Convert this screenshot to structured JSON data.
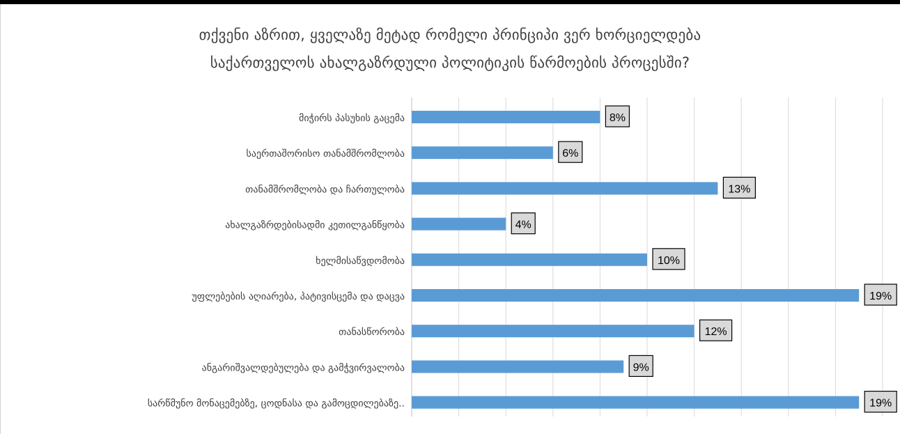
{
  "chart_data": {
    "type": "bar",
    "orientation": "horizontal",
    "title_lines": [
      "თქვენი აზრით,  ყველაზე მეტად რომელი პრინციპი  ვერ ხორციელდება",
      "საქართველოს ახალგაზრდული  პოლიტიკის  წარმოების პროცესში?"
    ],
    "categories": [
      "მიჭირს პასუხის გაცემა",
      "საერთაშორისო თანამშრომლობა",
      "თანამშრომლობა და ჩართულობა",
      "ახალგაზრდებისადმი კეთილგანწყობა",
      "ხელმისაწვდომობა",
      "უფლებების აღიარება, პატივისცემა და დაცვა",
      "თანასწორობა",
      "ანგარიშვალდებულება და გამჭვირვალობა",
      "სარწმუნო მონაცემებზე, ცოდნასა და გამოცდილებაზე.."
    ],
    "values": [
      8,
      6,
      13,
      4,
      10,
      19,
      12,
      9,
      19
    ],
    "data_labels": [
      "8%",
      "6%",
      "13%",
      "4%",
      "10%",
      "19%",
      "12%",
      "9%",
      "19%"
    ],
    "xlim": [
      0,
      20
    ],
    "x_gridlines_every": 2,
    "grid": true,
    "legend": "none",
    "bar_color": "#5b9bd5"
  }
}
